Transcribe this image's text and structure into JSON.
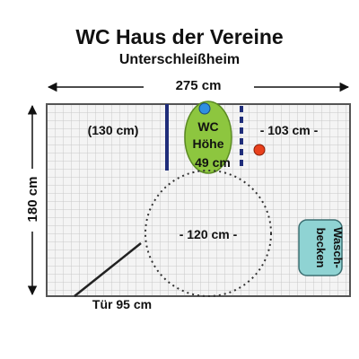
{
  "title": "WC Haus der Vereine",
  "subtitle": "Unterschleißheim",
  "dimensions": {
    "width": "275 cm",
    "height": "180 cm",
    "left_space": "(130 cm)",
    "right_space": "- 103 cm -",
    "turning_circle": "- 120 cm -",
    "door": "Tür 95 cm"
  },
  "wc": {
    "label_line1": "WC",
    "label_line2": "Höhe",
    "label_line3": "49 cm"
  },
  "sink": {
    "label_line1": "Wasch-",
    "label_line2": "becken"
  },
  "colors": {
    "wc_fill": "#8dc63f",
    "sink_fill": "#8fd3d3",
    "grab_bar": "#1f2d7a",
    "red_marker": "#e8401c",
    "blue_marker": "#2f8fe0",
    "grid_line": "#c8c8c8",
    "wall": "#555555"
  }
}
